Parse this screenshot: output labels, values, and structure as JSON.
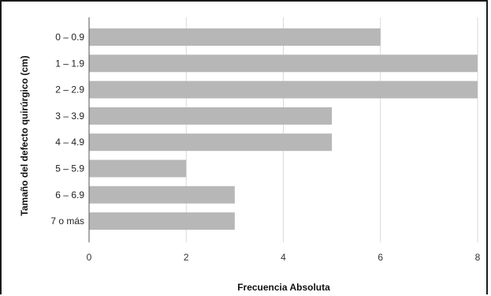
{
  "chart_data": {
    "type": "bar",
    "orientation": "horizontal",
    "categories": [
      "0 – 0.9",
      "1 – 1.9",
      "2 – 2.9",
      "3 – 3.9",
      "4 – 4.9",
      "5 – 5.9",
      "6 – 6.9",
      "7 o más"
    ],
    "values": [
      6,
      8,
      8,
      5,
      5,
      2,
      3,
      3
    ],
    "xlabel": "Frecuencia Absoluta",
    "ylabel": "Tamaño del defecto quirúrgico (cm)",
    "xlim": [
      0,
      8
    ],
    "xticks": [
      "0",
      "2",
      "4",
      "6",
      "8"
    ],
    "grid": true,
    "colors": {
      "bar": "#b7b7b7",
      "grid": "#d9d9d9",
      "axis": "#555555"
    }
  }
}
